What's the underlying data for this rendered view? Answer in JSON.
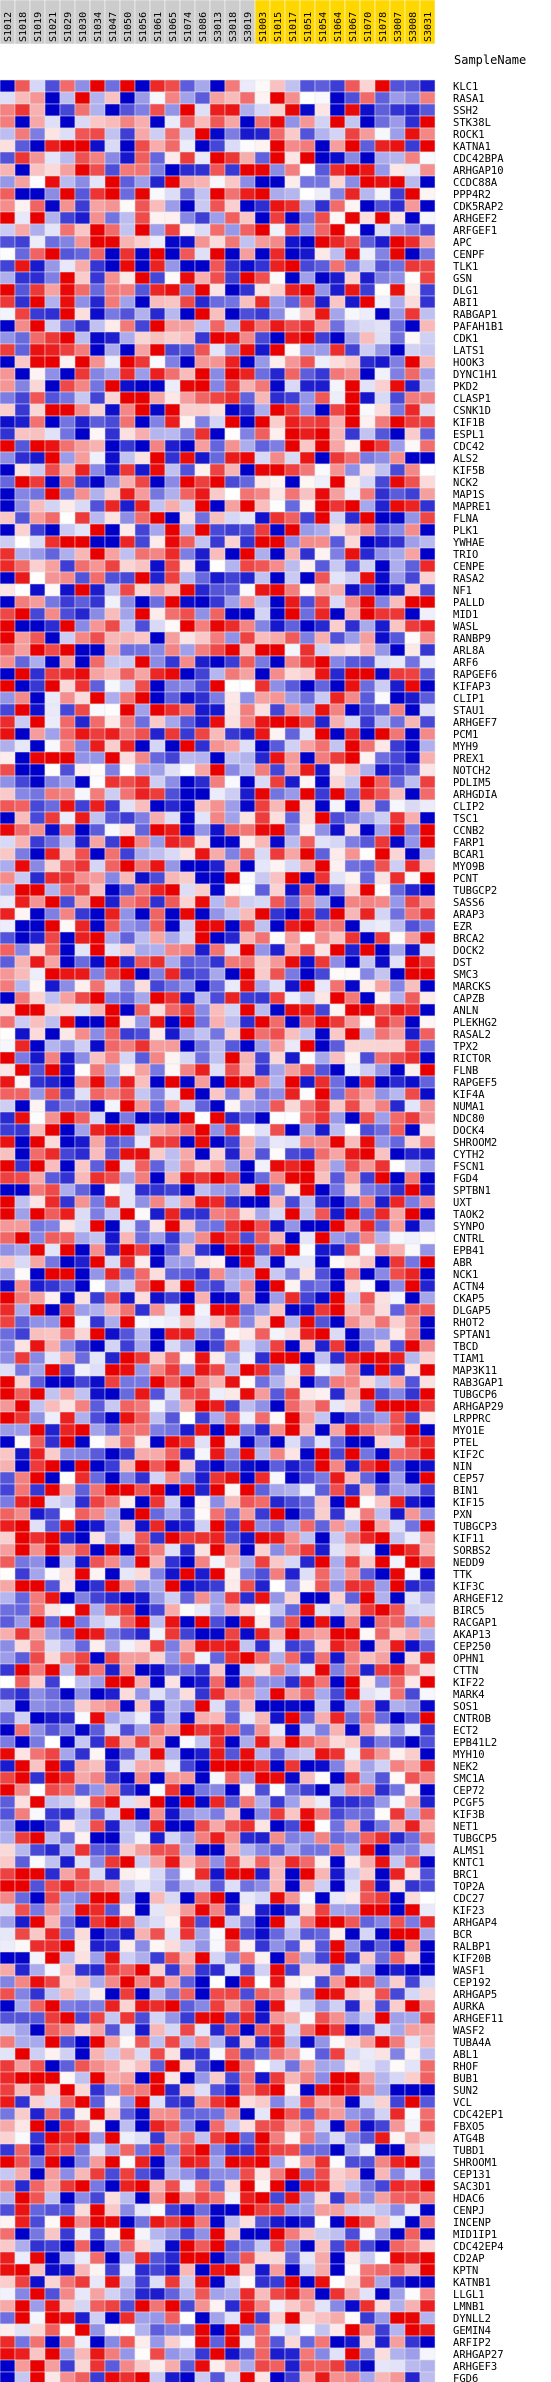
{
  "chart_data": {
    "type": "heatmap",
    "row_header": "SampleName",
    "columns": [
      {
        "name": "S1012",
        "group": "normal"
      },
      {
        "name": "S1018",
        "group": "normal"
      },
      {
        "name": "S1019",
        "group": "normal"
      },
      {
        "name": "S1021",
        "group": "normal"
      },
      {
        "name": "S1029",
        "group": "normal"
      },
      {
        "name": "S1030",
        "group": "normal"
      },
      {
        "name": "S1034",
        "group": "normal"
      },
      {
        "name": "S1047",
        "group": "normal"
      },
      {
        "name": "S1050",
        "group": "normal"
      },
      {
        "name": "S1056",
        "group": "normal"
      },
      {
        "name": "S1061",
        "group": "normal"
      },
      {
        "name": "S1065",
        "group": "normal"
      },
      {
        "name": "S1074",
        "group": "normal"
      },
      {
        "name": "S1086",
        "group": "normal"
      },
      {
        "name": "S3013",
        "group": "normal"
      },
      {
        "name": "S3018",
        "group": "normal"
      },
      {
        "name": "S3019",
        "group": "normal"
      },
      {
        "name": "S1003",
        "group": "highlight"
      },
      {
        "name": "S1015",
        "group": "highlight"
      },
      {
        "name": "S1017",
        "group": "highlight"
      },
      {
        "name": "S1051",
        "group": "highlight"
      },
      {
        "name": "S1054",
        "group": "highlight"
      },
      {
        "name": "S1064",
        "group": "highlight"
      },
      {
        "name": "S1067",
        "group": "highlight"
      },
      {
        "name": "S1070",
        "group": "highlight"
      },
      {
        "name": "S1078",
        "group": "highlight"
      },
      {
        "name": "S3007",
        "group": "highlight"
      },
      {
        "name": "S3008",
        "group": "highlight"
      },
      {
        "name": "S3031",
        "group": "highlight"
      }
    ],
    "rows": [
      "KLC1",
      "RASA1",
      "SSH2",
      "STK38L",
      "ROCK1",
      "KATNA1",
      "CDC42BPA",
      "ARHGAP10",
      "CCDC88A",
      "PPP4R2",
      "CDK5RAP2",
      "ARHGEF2",
      "ARFGEF1",
      "APC",
      "CENPF",
      "TLK1",
      "GSN",
      "DLG1",
      "ABI1",
      "RABGAP1",
      "PAFAH1B1",
      "CDK1",
      "LATS1",
      "HOOK3",
      "DYNC1H1",
      "PKD2",
      "CLASP1",
      "CSNK1D",
      "KIF1B",
      "ESPL1",
      "CDC42",
      "ALS2",
      "KIF5B",
      "NCK2",
      "MAP1S",
      "MAPRE1",
      "FLNA",
      "PLK1",
      "YWHAE",
      "TRIO",
      "CENPE",
      "RASA2",
      "NF1",
      "PALLD",
      "MID1",
      "WASL",
      "RANBP9",
      "ARL8A",
      "ARF6",
      "RAPGEF6",
      "KIFAP3",
      "CLIP1",
      "STAU1",
      "ARHGEF7",
      "PCM1",
      "MYH9",
      "PREX1",
      "NOTCH2",
      "PDLIM5",
      "ARHGDIA",
      "CLIP2",
      "TSC1",
      "CCNB2",
      "FARP1",
      "BCAR1",
      "MYO9B",
      "PCNT",
      "TUBGCP2",
      "SASS6",
      "ARAP3",
      "EZR",
      "BRCA2",
      "DOCK2",
      "DST",
      "SMC3",
      "MARCKS",
      "CAPZB",
      "ANLN",
      "PLEKHG2",
      "RASAL2",
      "TPX2",
      "RICTOR",
      "FLNB",
      "RAPGEF5",
      "KIF4A",
      "NUMA1",
      "NDC80",
      "DOCK4",
      "SHROOM2",
      "CYTH2",
      "FSCN1",
      "FGD4",
      "SPTBN1",
      "UXT",
      "TAOK2",
      "SYNPO",
      "CNTRL",
      "EPB41",
      "ABR",
      "NCK1",
      "ACTN4",
      "CKAP5",
      "DLGAP5",
      "RHOT2",
      "SPTAN1",
      "TBCD",
      "TIAM1",
      "MAP3K11",
      "RAB3GAP1",
      "TUBGCP6",
      "ARHGAP29",
      "LRPPRC",
      "MYO1E",
      "PTEL",
      "KIF2C",
      "NIN",
      "CEP57",
      "BIN1",
      "KIF15",
      "PXN",
      "TUBGCP3",
      "KIF11",
      "SORBS2",
      "NEDD9",
      "TTK",
      "KIF3C",
      "ARHGEF12",
      "BIRC5",
      "RACGAP1",
      "AKAP13",
      "CEP250",
      "OPHN1",
      "CTTN",
      "KIF22",
      "MARK4",
      "SOS1",
      "CNTROB",
      "ECT2",
      "EPB41L2",
      "MYH10",
      "NEK2",
      "SMC1A",
      "CEP72",
      "PCGF5",
      "KIF3B",
      "NET1",
      "TUBGCP5",
      "ALMS1",
      "KNTC1",
      "BRC1",
      "TOP2A",
      "CDC27",
      "KIF23",
      "ARHGAP4",
      "BCR",
      "RALBP1",
      "KIF20B",
      "WASF1",
      "CEP192",
      "ARHGAP5",
      "AURKA",
      "ARHGEF11",
      "WASF2",
      "TUBA4A",
      "ABL1",
      "RHOF",
      "BUB1",
      "SUN2",
      "VCL",
      "CDC42EP1",
      "FBXO5",
      "ATG4B",
      "TUBD1",
      "SHROOM1",
      "CEP131",
      "SAC3D1",
      "HDAC6",
      "CENPJ",
      "INCENP",
      "MID1IP1",
      "CDC42EP4",
      "CD2AP",
      "KPTN",
      "KATNB1",
      "LLGL1",
      "LMNB1",
      "DYNLL2",
      "GEMIN4",
      "ARFIP2",
      "ARHGAP27",
      "ARHGEF3",
      "FGD6"
    ],
    "color_scale": {
      "low": "#0000c8",
      "mid": "#ffffff",
      "high": "#e80000"
    },
    "header_colors": {
      "normal": "#cccccc",
      "highlight": "#ffd700"
    }
  }
}
